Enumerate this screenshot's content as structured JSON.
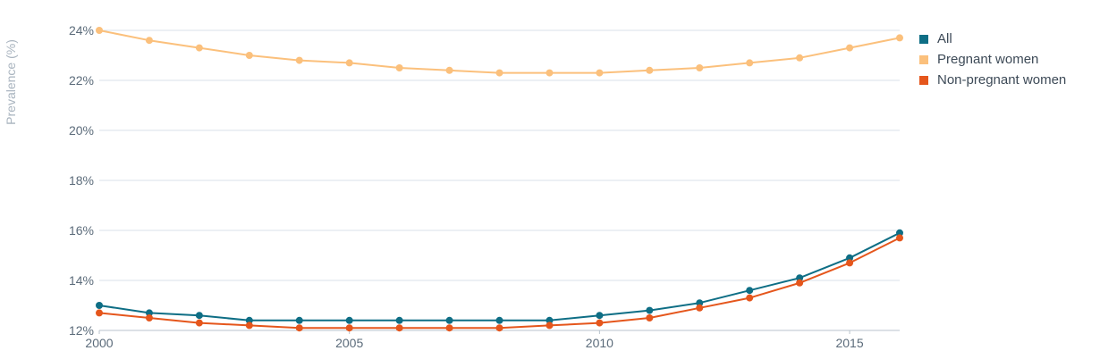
{
  "chart_data": {
    "type": "line",
    "title": "",
    "xlabel": "",
    "ylabel": "Prevalence (%)",
    "x": [
      2000,
      2001,
      2002,
      2003,
      2004,
      2005,
      2006,
      2007,
      2008,
      2009,
      2010,
      2011,
      2012,
      2013,
      2014,
      2015,
      2016
    ],
    "xticks": [
      2000,
      2005,
      2010,
      2015
    ],
    "yticks": [
      12,
      14,
      16,
      18,
      20,
      22,
      24
    ],
    "ytick_labels": [
      "12%",
      "14%",
      "16%",
      "18%",
      "20%",
      "22%",
      "24%"
    ],
    "ylim": [
      12,
      24
    ],
    "xlim": [
      2000,
      2016
    ],
    "grid": true,
    "legend_position": "top-right",
    "series": [
      {
        "name": "All",
        "color": "#0e6e85",
        "values": [
          13.0,
          12.7,
          12.6,
          12.4,
          12.4,
          12.4,
          12.4,
          12.4,
          12.4,
          12.4,
          12.6,
          12.8,
          13.1,
          13.6,
          14.1,
          14.9,
          15.9
        ]
      },
      {
        "name": "Pregnant women",
        "color": "#fbc07c",
        "values": [
          24.0,
          23.6,
          23.3,
          23.0,
          22.8,
          22.7,
          22.5,
          22.4,
          22.3,
          22.3,
          22.3,
          22.4,
          22.5,
          22.7,
          22.9,
          23.3,
          23.7
        ]
      },
      {
        "name": "Non-pregnant women",
        "color": "#e5561c",
        "values": [
          12.7,
          12.5,
          12.3,
          12.2,
          12.1,
          12.1,
          12.1,
          12.1,
          12.1,
          12.2,
          12.3,
          12.5,
          12.9,
          13.3,
          13.9,
          14.7,
          15.7
        ]
      }
    ]
  }
}
